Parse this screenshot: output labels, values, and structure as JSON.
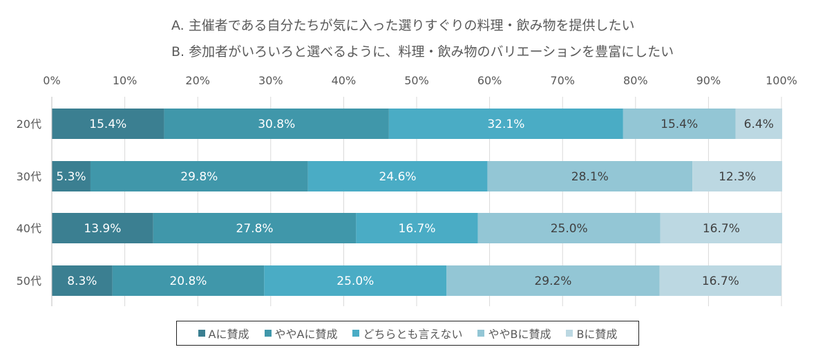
{
  "chart_data": {
    "type": "bar",
    "orientation": "horizontal",
    "stacked": true,
    "subtitles": [
      "A. 主催者である自分たちが気に入った選りすぐりの料理・飲み物を提供したい",
      "B. 参加者がいろいろと選べるように、料理・飲み物のバリエーションを豊富にしたい"
    ],
    "categories": [
      "20代",
      "30代",
      "40代",
      "50代"
    ],
    "x_ticks": [
      "0%",
      "10%",
      "20%",
      "30%",
      "40%",
      "50%",
      "60%",
      "70%",
      "80%",
      "90%",
      "100%"
    ],
    "xlim": [
      0,
      100
    ],
    "grid": true,
    "legend_position": "bottom",
    "series": [
      {
        "name": "Aに賛成",
        "color": "#3b7f91",
        "values": [
          15.4,
          5.3,
          13.9,
          8.3
        ],
        "labels": [
          "15.4%",
          "5.3%",
          "13.9%",
          "8.3%"
        ]
      },
      {
        "name": "ややAに賛成",
        "color": "#4097aa",
        "values": [
          30.8,
          29.8,
          27.8,
          20.8
        ],
        "labels": [
          "30.8%",
          "29.8%",
          "27.8%",
          "20.8%"
        ]
      },
      {
        "name": "どちらとも言えない",
        "color": "#4aacc5",
        "values": [
          32.1,
          24.6,
          16.7,
          25.0
        ],
        "labels": [
          "32.1%",
          "24.6%",
          "16.7%",
          "25.0%"
        ]
      },
      {
        "name": "ややBに賛成",
        "color": "#93c6d5",
        "values": [
          15.4,
          28.1,
          25.0,
          29.2
        ],
        "labels": [
          "15.4%",
          "28.1%",
          "25.0%",
          "29.2%"
        ]
      },
      {
        "name": "Bに賛成",
        "color": "#bcd8e2",
        "values": [
          6.4,
          12.3,
          16.7,
          16.7
        ],
        "labels": [
          "6.4%",
          "12.3%",
          "16.7%",
          "16.7%"
        ]
      }
    ]
  }
}
